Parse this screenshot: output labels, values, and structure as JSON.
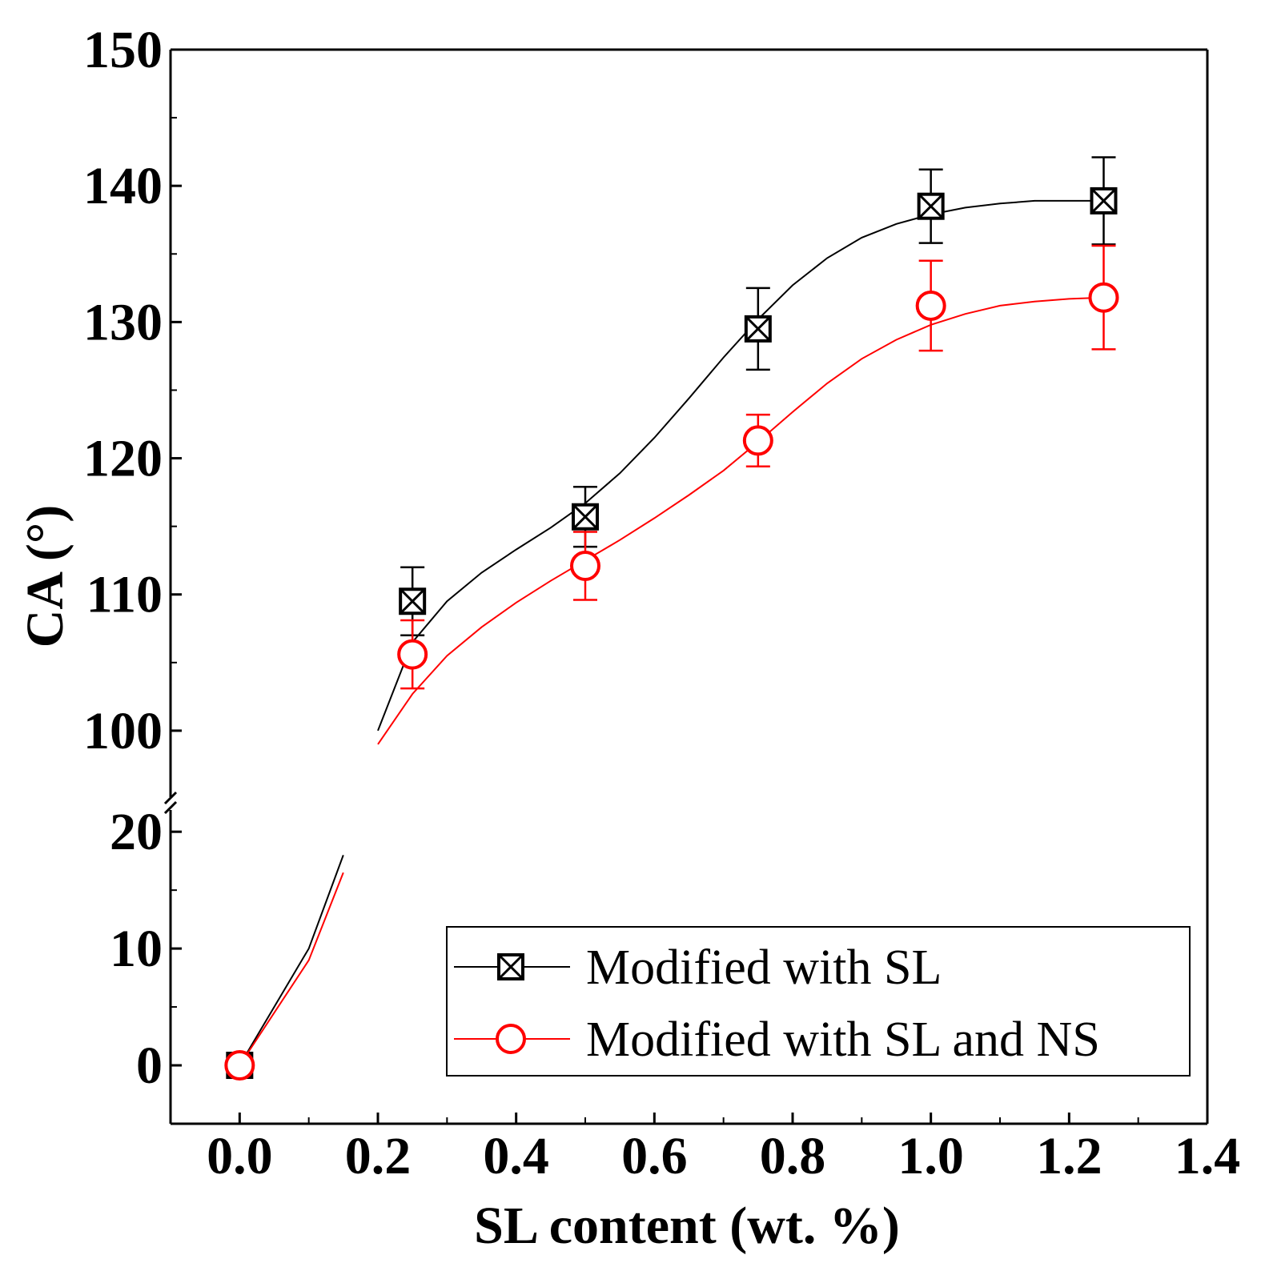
{
  "chart_data": {
    "type": "line",
    "xlabel": "SL content (wt. %)",
    "ylabel": "CA (°)",
    "xlim": [
      -0.1,
      1.4
    ],
    "ylim_lower": [
      -5,
      22
    ],
    "ylim_upper": [
      95,
      150
    ],
    "axis_break": [
      22,
      95
    ],
    "x_ticks": [
      "0.0",
      "0.2",
      "0.4",
      "0.6",
      "0.8",
      "1.0",
      "1.2",
      "1.4"
    ],
    "x_tick_values": [
      0,
      0.2,
      0.4,
      0.6,
      0.8,
      1.0,
      1.2,
      1.4
    ],
    "y_ticks_lower": [
      "0",
      "10",
      "20"
    ],
    "y_tick_values_lower": [
      0,
      10,
      20
    ],
    "y_ticks_upper": [
      "100",
      "110",
      "120",
      "130",
      "140",
      "150"
    ],
    "y_tick_values_upper": [
      100,
      110,
      120,
      130,
      140,
      150
    ],
    "legend_position": "bottom-right",
    "series": [
      {
        "name": "Modified with SL",
        "color": "#000000",
        "marker": "square-x",
        "x": [
          0,
          0.25,
          0.5,
          0.75,
          1.0,
          1.25
        ],
        "values": [
          0,
          109.5,
          115.7,
          129.5,
          138.5,
          138.9
        ],
        "errors": [
          0,
          2.5,
          2.2,
          3.0,
          2.7,
          3.2
        ],
        "fit": [
          [
            0,
            0
          ],
          [
            0.1,
            10
          ],
          [
            0.15,
            18
          ],
          [
            0.2,
            100
          ],
          [
            0.25,
            106.5
          ],
          [
            0.3,
            109.5
          ],
          [
            0.35,
            111.6
          ],
          [
            0.4,
            113.3
          ],
          [
            0.45,
            114.9
          ],
          [
            0.5,
            116.7
          ],
          [
            0.55,
            118.9
          ],
          [
            0.6,
            121.5
          ],
          [
            0.65,
            124.4
          ],
          [
            0.7,
            127.4
          ],
          [
            0.75,
            130.2
          ],
          [
            0.8,
            132.7
          ],
          [
            0.85,
            134.7
          ],
          [
            0.9,
            136.2
          ],
          [
            0.95,
            137.2
          ],
          [
            1.0,
            137.9
          ],
          [
            1.05,
            138.4
          ],
          [
            1.1,
            138.7
          ],
          [
            1.15,
            138.9
          ],
          [
            1.2,
            138.9
          ],
          [
            1.25,
            138.9
          ]
        ]
      },
      {
        "name": "Modified with SL and NS",
        "color": "#ff0000",
        "marker": "circle",
        "x": [
          0,
          0.25,
          0.5,
          0.75,
          1.0,
          1.25
        ],
        "values": [
          0,
          105.6,
          112.1,
          121.3,
          131.2,
          131.8
        ],
        "errors": [
          0,
          2.5,
          2.5,
          1.9,
          3.3,
          3.8
        ],
        "fit": [
          [
            0,
            0
          ],
          [
            0.1,
            9
          ],
          [
            0.15,
            16.5
          ],
          [
            0.2,
            99
          ],
          [
            0.25,
            102.7
          ],
          [
            0.3,
            105.5
          ],
          [
            0.35,
            107.6
          ],
          [
            0.4,
            109.4
          ],
          [
            0.45,
            111
          ],
          [
            0.5,
            112.5
          ],
          [
            0.55,
            114
          ],
          [
            0.6,
            115.6
          ],
          [
            0.65,
            117.3
          ],
          [
            0.7,
            119.1
          ],
          [
            0.75,
            121.2
          ],
          [
            0.8,
            123.4
          ],
          [
            0.85,
            125.5
          ],
          [
            0.9,
            127.3
          ],
          [
            0.95,
            128.7
          ],
          [
            1.0,
            129.8
          ],
          [
            1.05,
            130.6
          ],
          [
            1.1,
            131.2
          ],
          [
            1.15,
            131.5
          ],
          [
            1.2,
            131.7
          ],
          [
            1.25,
            131.8
          ]
        ]
      }
    ]
  }
}
